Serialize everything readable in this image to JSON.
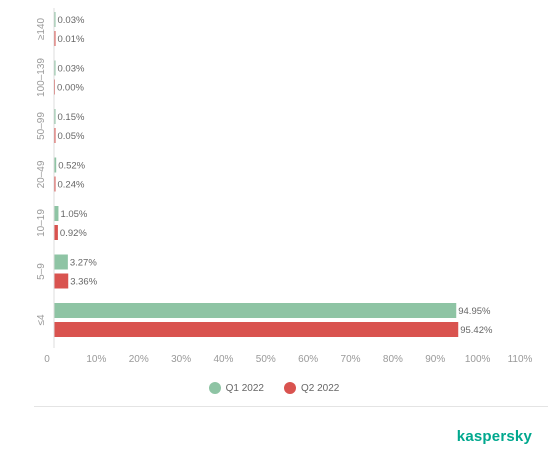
{
  "chart_data": {
    "type": "bar",
    "orientation": "horizontal",
    "categories": [
      "≥140",
      "100–139",
      "50–99",
      "20–49",
      "10–19",
      "5–9",
      "≤4"
    ],
    "series": [
      {
        "name": "Q1 2022",
        "color": "#8ec4a4",
        "values": [
          0.03,
          0.03,
          0.15,
          0.52,
          1.05,
          3.27,
          94.95
        ],
        "labels": [
          "0.03%",
          "0.03%",
          "0.15%",
          "0.52%",
          "1.05%",
          "3.27%",
          "94.95%"
        ]
      },
      {
        "name": "Q2 2022",
        "color": "#d9534f",
        "values": [
          0.01,
          0.0,
          0.05,
          0.24,
          0.92,
          3.36,
          95.42
        ],
        "labels": [
          "0.01%",
          "0.00%",
          "0.05%",
          "0.24%",
          "0.92%",
          "3.36%",
          "95.42%"
        ]
      }
    ],
    "xlim": [
      0,
      110
    ],
    "xticks": [
      0,
      10,
      20,
      30,
      40,
      50,
      60,
      70,
      80,
      90,
      100,
      110
    ],
    "xtick_labels": [
      "0",
      "10%",
      "20%",
      "30%",
      "40%",
      "50%",
      "60%",
      "70%",
      "80%",
      "90%",
      "100%",
      "110%"
    ],
    "legend_position": "bottom-center",
    "grid": false
  },
  "legend": [
    {
      "label": "Q1 2022",
      "color": "#8ec4a4"
    },
    {
      "label": "Q2 2022",
      "color": "#d9534f"
    }
  ],
  "brand": {
    "name": "kaspersky"
  }
}
